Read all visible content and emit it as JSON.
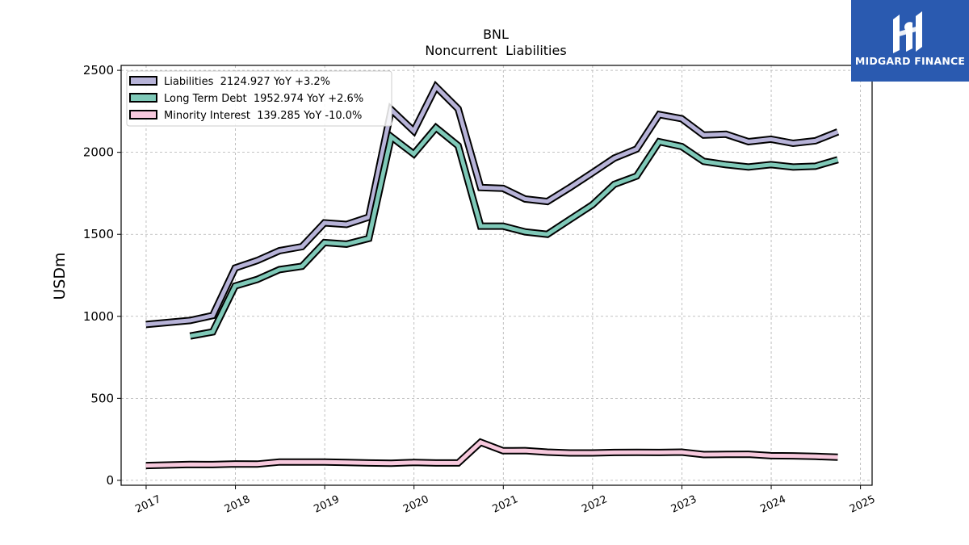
{
  "chart_data": {
    "type": "line",
    "title": "BNL",
    "subtitle": "Noncurrent  Liabilities",
    "xlabel": "",
    "ylabel": "USDm",
    "ylim": [
      -30,
      2530
    ],
    "xlim": [
      2016.72,
      2025.13
    ],
    "yticks": [
      0,
      500,
      1000,
      1500,
      2000,
      2500
    ],
    "xticks": [
      "2017",
      "2018",
      "2019",
      "2020",
      "2021",
      "2022",
      "2023",
      "2024",
      "2025"
    ],
    "grid": true,
    "legend_position": "top-left",
    "series": [
      {
        "name": "Liabilities",
        "legend_label": "Liabilities  2124.927 YoY +3.2%",
        "color": "#b7b3d8",
        "x": [
          "2016-12-31",
          "2017-06-30",
          "2017-09-30",
          "2017-12-31",
          "2018-03-31",
          "2018-06-30",
          "2018-09-30",
          "2018-12-31",
          "2019-03-31",
          "2019-06-30",
          "2019-09-30",
          "2019-12-31",
          "2020-03-31",
          "2020-06-30",
          "2020-09-30",
          "2020-12-31",
          "2021-03-31",
          "2021-06-30",
          "2021-09-30",
          "2021-12-31",
          "2022-03-31",
          "2022-06-30",
          "2022-09-30",
          "2022-12-31",
          "2023-03-31",
          "2023-06-30",
          "2023-09-30",
          "2023-12-31",
          "2024-03-31",
          "2024-06-30",
          "2024-09-30"
        ],
        "y": [
          950,
          975,
          1005,
          1295,
          1340,
          1400,
          1425,
          1570,
          1560,
          1605,
          2260,
          2130,
          2400,
          2265,
          1785,
          1780,
          1715,
          1700,
          1785,
          1875,
          1965,
          2020,
          2230,
          2205,
          2105,
          2110,
          2065,
          2080,
          2055,
          2070,
          2125
        ]
      },
      {
        "name": "Long Term Debt",
        "legend_label": "Long Term Debt  1952.974 YoY +2.6%",
        "color": "#7fc9b8",
        "x": [
          "2017-06-30",
          "2017-09-30",
          "2017-12-31",
          "2018-03-31",
          "2018-06-30",
          "2018-09-30",
          "2018-12-31",
          "2019-03-31",
          "2019-06-30",
          "2019-09-30",
          "2019-12-31",
          "2020-03-31",
          "2020-06-30",
          "2020-09-30",
          "2020-12-31",
          "2021-03-31",
          "2021-06-30",
          "2021-09-30",
          "2021-12-31",
          "2022-03-31",
          "2022-06-30",
          "2022-09-30",
          "2022-12-31",
          "2023-03-31",
          "2023-06-30",
          "2023-09-30",
          "2023-12-31",
          "2024-03-31",
          "2024-06-30",
          "2024-09-30"
        ],
        "y": [
          880,
          905,
          1185,
          1225,
          1285,
          1305,
          1450,
          1440,
          1475,
          2095,
          1990,
          2150,
          2040,
          1550,
          1550,
          1515,
          1500,
          1590,
          1680,
          1805,
          1855,
          2065,
          2035,
          1945,
          1925,
          1910,
          1925,
          1910,
          1915,
          1955
        ]
      },
      {
        "name": "Minority Interest",
        "legend_label": "Minority Interest  139.285 YoY -10.0%",
        "color": "#f7c9dd",
        "x": [
          "2016-12-31",
          "2017-06-30",
          "2017-09-30",
          "2017-12-31",
          "2018-03-31",
          "2018-06-30",
          "2018-09-30",
          "2018-12-31",
          "2019-03-31",
          "2019-06-30",
          "2019-09-30",
          "2019-12-31",
          "2020-03-31",
          "2020-06-30",
          "2020-09-30",
          "2020-12-31",
          "2021-03-31",
          "2021-06-30",
          "2021-09-30",
          "2021-12-31",
          "2022-03-31",
          "2022-06-30",
          "2022-09-30",
          "2022-12-31",
          "2023-03-31",
          "2023-06-30",
          "2023-09-30",
          "2023-12-31",
          "2024-03-31",
          "2024-06-30",
          "2024-09-30"
        ],
        "y": [
          90,
          97,
          96,
          100,
          99,
          112,
          112,
          112,
          109,
          106,
          104,
          109,
          106,
          106,
          232,
          180,
          181,
          172,
          167,
          167,
          170,
          171,
          170,
          172,
          157,
          158,
          159,
          150,
          149,
          146,
          141
        ]
      }
    ]
  },
  "logo": {
    "text": "MIDGARD FINANCE",
    "background": "#2a5ab0"
  }
}
